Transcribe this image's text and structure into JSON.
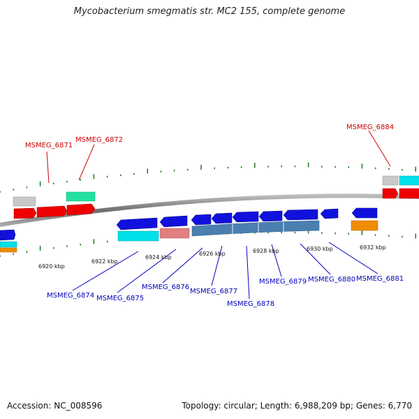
{
  "title": "Mycobacterium smegmatis str. MC2 155, complete genome",
  "footer": {
    "accession": "Accession: NC_008596",
    "summary": "Topology: circular; Length: 6,988,209 bp; Genes: 6,770"
  },
  "colors": {
    "forward_cds": "#ee0000",
    "reverse_cds": "#1111dd",
    "reverse_cds_steel": "#4a7fb0",
    "gene": "#00e0e8",
    "pseudo_gene": "#c8c8c8",
    "rna": "#22e0a0",
    "ncrna": "#f08c00",
    "salmon": "#e08080",
    "backbone": "#8c8c8c",
    "tick": "#1a7a1a",
    "forward_label": "#cc0000",
    "reverse_label": "#0000bb"
  },
  "ruler": [
    {
      "label": "6920 kbp"
    },
    {
      "label": "6922 kbp"
    },
    {
      "label": "6924 kbp"
    },
    {
      "label": "6926 kbp"
    },
    {
      "label": "6928 kbp"
    },
    {
      "label": "6930 kbp"
    },
    {
      "label": "6932 kbp"
    }
  ],
  "forward_labels": [
    {
      "text": "MSMEG_6871"
    },
    {
      "text": "MSMEG_6872"
    },
    {
      "text": "MSMEG_6884"
    }
  ],
  "reverse_labels": [
    {
      "text": "MSMEG_6874"
    },
    {
      "text": "MSMEG_6875"
    },
    {
      "text": "MSMEG_6876"
    },
    {
      "text": "MSMEG_6877"
    },
    {
      "text": "MSMEG_6878"
    },
    {
      "text": "MSMEG_6879"
    },
    {
      "text": "MSMEG_6880"
    },
    {
      "text": "MSMEG_6881"
    }
  ]
}
